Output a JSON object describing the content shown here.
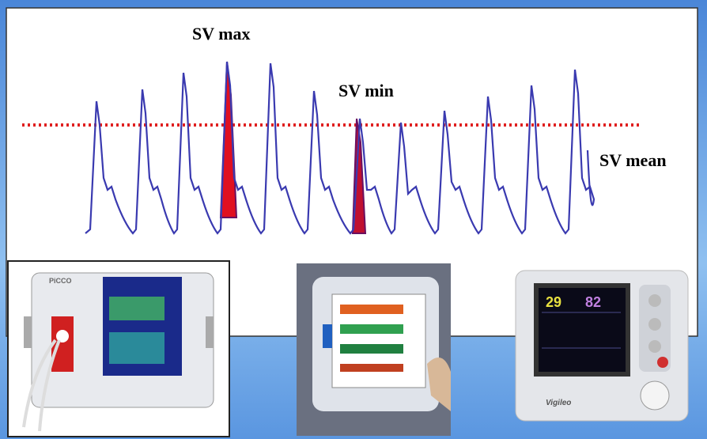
{
  "diagram": {
    "labels": {
      "sv_max": "SV max",
      "sv_min": "SV min",
      "sv_mean": "SV mean"
    },
    "devices": {
      "picco": "PiCCO",
      "vigileo_brand": "Vigileo",
      "vigileo_reading_1": "29",
      "vigileo_reading_2": "82"
    }
  }
}
